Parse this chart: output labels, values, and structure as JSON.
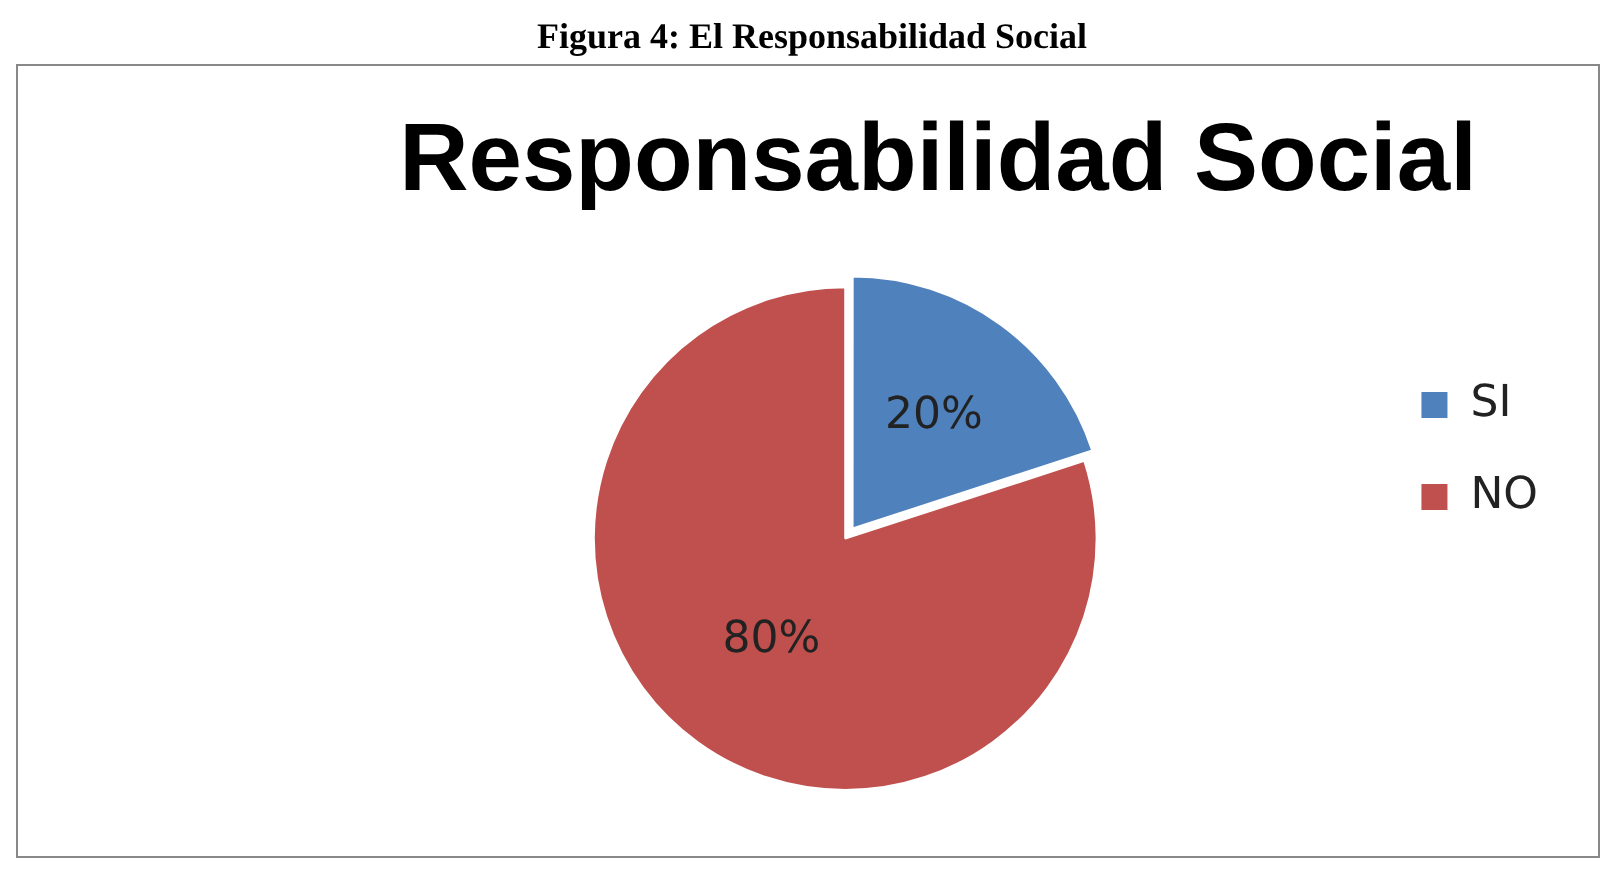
{
  "chart_data": {
    "type": "pie",
    "title": "Responsabilidad Social",
    "annotations": [
      "Figura 4: El Responsabilidad Social"
    ],
    "categories": [
      "SI",
      "NO"
    ],
    "values": [
      20,
      80
    ],
    "colors": [
      "#4f81bd",
      "#c0504d"
    ],
    "value_labels": [
      "20%",
      "80%"
    ],
    "legend": "right"
  }
}
